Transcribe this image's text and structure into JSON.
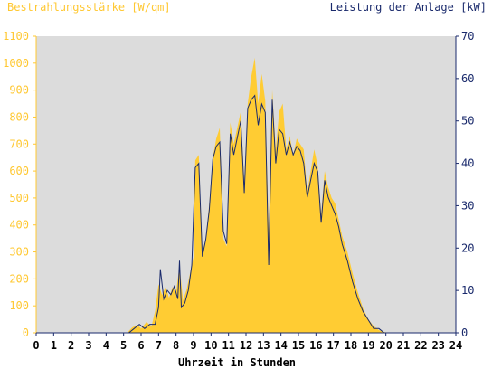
{
  "chart_data": {
    "type": "area",
    "title_left": "Bestrahlungsstärke [W/qm]",
    "title_right": "Leistung der Anlage [kW]",
    "xlabel": "Uhrzeit in Stunden",
    "xlim": [
      0,
      24
    ],
    "ylim_left": [
      0,
      1100
    ],
    "ylim_right": [
      0,
      70
    ],
    "x_ticks": [
      "0",
      "1",
      "2",
      "3",
      "4",
      "5",
      "6",
      "7",
      "8",
      "9",
      "10",
      "11",
      "12",
      "13",
      "14",
      "15",
      "16",
      "17",
      "18",
      "19",
      "20",
      "21",
      "22",
      "23",
      "24"
    ],
    "y_ticks_left": [
      "0",
      "100",
      "200",
      "300",
      "400",
      "500",
      "600",
      "700",
      "800",
      "900",
      "1000",
      "1100"
    ],
    "y_ticks_right": [
      "0",
      "10",
      "20",
      "30",
      "40",
      "50",
      "60",
      "70"
    ],
    "grid": false,
    "colors": {
      "irradiance": "#ffcc33",
      "power": "#1a2a6c",
      "plot_bg": "#dcdcdc",
      "axis_left": "#ffc832",
      "axis_right": "#1a2a6c"
    },
    "series": [
      {
        "name": "Bestrahlungsstärke [W/qm]",
        "axis": "left",
        "x": [
          0,
          5.2,
          5.5,
          5.8,
          6.0,
          6.3,
          6.6,
          6.8,
          7.0,
          7.2,
          7.4,
          7.6,
          7.8,
          8.0,
          8.2,
          8.4,
          8.6,
          8.8,
          9.0,
          9.1,
          9.3,
          9.5,
          9.7,
          9.9,
          10.1,
          10.3,
          10.5,
          10.7,
          10.9,
          11.1,
          11.3,
          11.5,
          11.7,
          11.9,
          12.1,
          12.3,
          12.5,
          12.7,
          12.9,
          13.1,
          13.3,
          13.5,
          13.7,
          13.9,
          14.1,
          14.3,
          14.5,
          14.7,
          14.9,
          15.1,
          15.3,
          15.5,
          15.7,
          15.9,
          16.1,
          16.3,
          16.5,
          16.7,
          16.9,
          17.1,
          17.3,
          17.5,
          17.8,
          18.1,
          18.4,
          18.7,
          19.0,
          19.3,
          19.6,
          19.9,
          20.2,
          20.5,
          20.8,
          24
        ],
        "y": [
          0,
          0,
          20,
          30,
          15,
          40,
          25,
          80,
          180,
          140,
          170,
          130,
          170,
          150,
          250,
          120,
          160,
          220,
          280,
          640,
          660,
          300,
          350,
          480,
          650,
          720,
          760,
          350,
          320,
          780,
          700,
          760,
          820,
          560,
          850,
          950,
          1020,
          850,
          960,
          860,
          380,
          900,
          680,
          820,
          850,
          680,
          730,
          660,
          720,
          700,
          680,
          520,
          600,
          680,
          620,
          440,
          600,
          540,
          500,
          480,
          420,
          360,
          300,
          220,
          150,
          90,
          50,
          25,
          10,
          3,
          0,
          0,
          0,
          0
        ]
      },
      {
        "name": "Leistung der Anlage [kW]",
        "axis": "right",
        "x": [
          0,
          5.3,
          5.6,
          5.9,
          6.2,
          6.5,
          6.8,
          7.0,
          7.1,
          7.3,
          7.5,
          7.7,
          7.9,
          8.1,
          8.2,
          8.3,
          8.5,
          8.7,
          8.9,
          9.1,
          9.3,
          9.5,
          9.7,
          9.9,
          10.1,
          10.3,
          10.5,
          10.7,
          10.9,
          11.1,
          11.3,
          11.5,
          11.7,
          11.9,
          12.1,
          12.3,
          12.5,
          12.7,
          12.9,
          13.1,
          13.3,
          13.5,
          13.7,
          13.9,
          14.1,
          14.3,
          14.5,
          14.7,
          14.9,
          15.1,
          15.3,
          15.5,
          15.7,
          15.9,
          16.1,
          16.3,
          16.5,
          16.7,
          16.9,
          17.1,
          17.3,
          17.5,
          17.8,
          18.1,
          18.4,
          18.7,
          19.0,
          19.3,
          19.6,
          19.9,
          20.2,
          20.5,
          24
        ],
        "y": [
          0,
          0,
          1,
          2,
          1,
          2,
          2,
          6,
          15,
          8,
          10,
          9,
          11,
          8,
          17,
          6,
          7,
          10,
          16,
          39,
          40,
          18,
          22,
          29,
          41,
          44,
          45,
          24,
          21,
          47,
          42,
          46,
          50,
          33,
          53,
          55,
          56,
          49,
          54,
          52,
          16,
          55,
          40,
          48,
          47,
          42,
          45,
          42,
          44,
          43,
          40,
          32,
          36,
          40,
          38,
          26,
          36,
          32,
          30,
          28,
          25,
          21,
          17,
          12,
          8,
          5,
          3,
          1,
          1,
          0,
          0,
          0,
          0
        ]
      }
    ]
  }
}
